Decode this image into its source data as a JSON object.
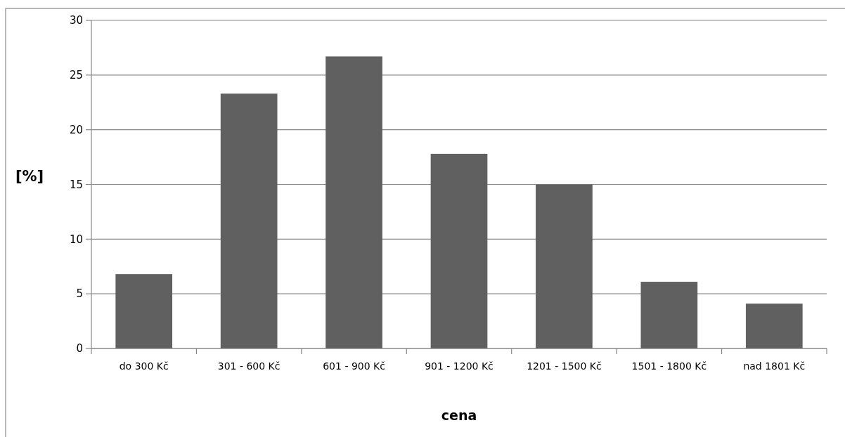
{
  "chart_data": {
    "type": "bar",
    "xlabel": "cena",
    "ylabel": "[%]",
    "categories": [
      "do 300 Kč",
      "301 - 600 Kč",
      "601 - 900 Kč",
      "901 - 1200 Kč",
      "1201 - 1500 Kč",
      "1501 - 1800 Kč",
      "nad 1801 Kč"
    ],
    "values": [
      6.8,
      23.3,
      26.7,
      17.8,
      15.0,
      6.1,
      4.1
    ],
    "color": "#606060",
    "ylim": [
      0,
      30
    ],
    "yticks": [
      0,
      5,
      10,
      15,
      20,
      25,
      30
    ],
    "grid": "y"
  }
}
